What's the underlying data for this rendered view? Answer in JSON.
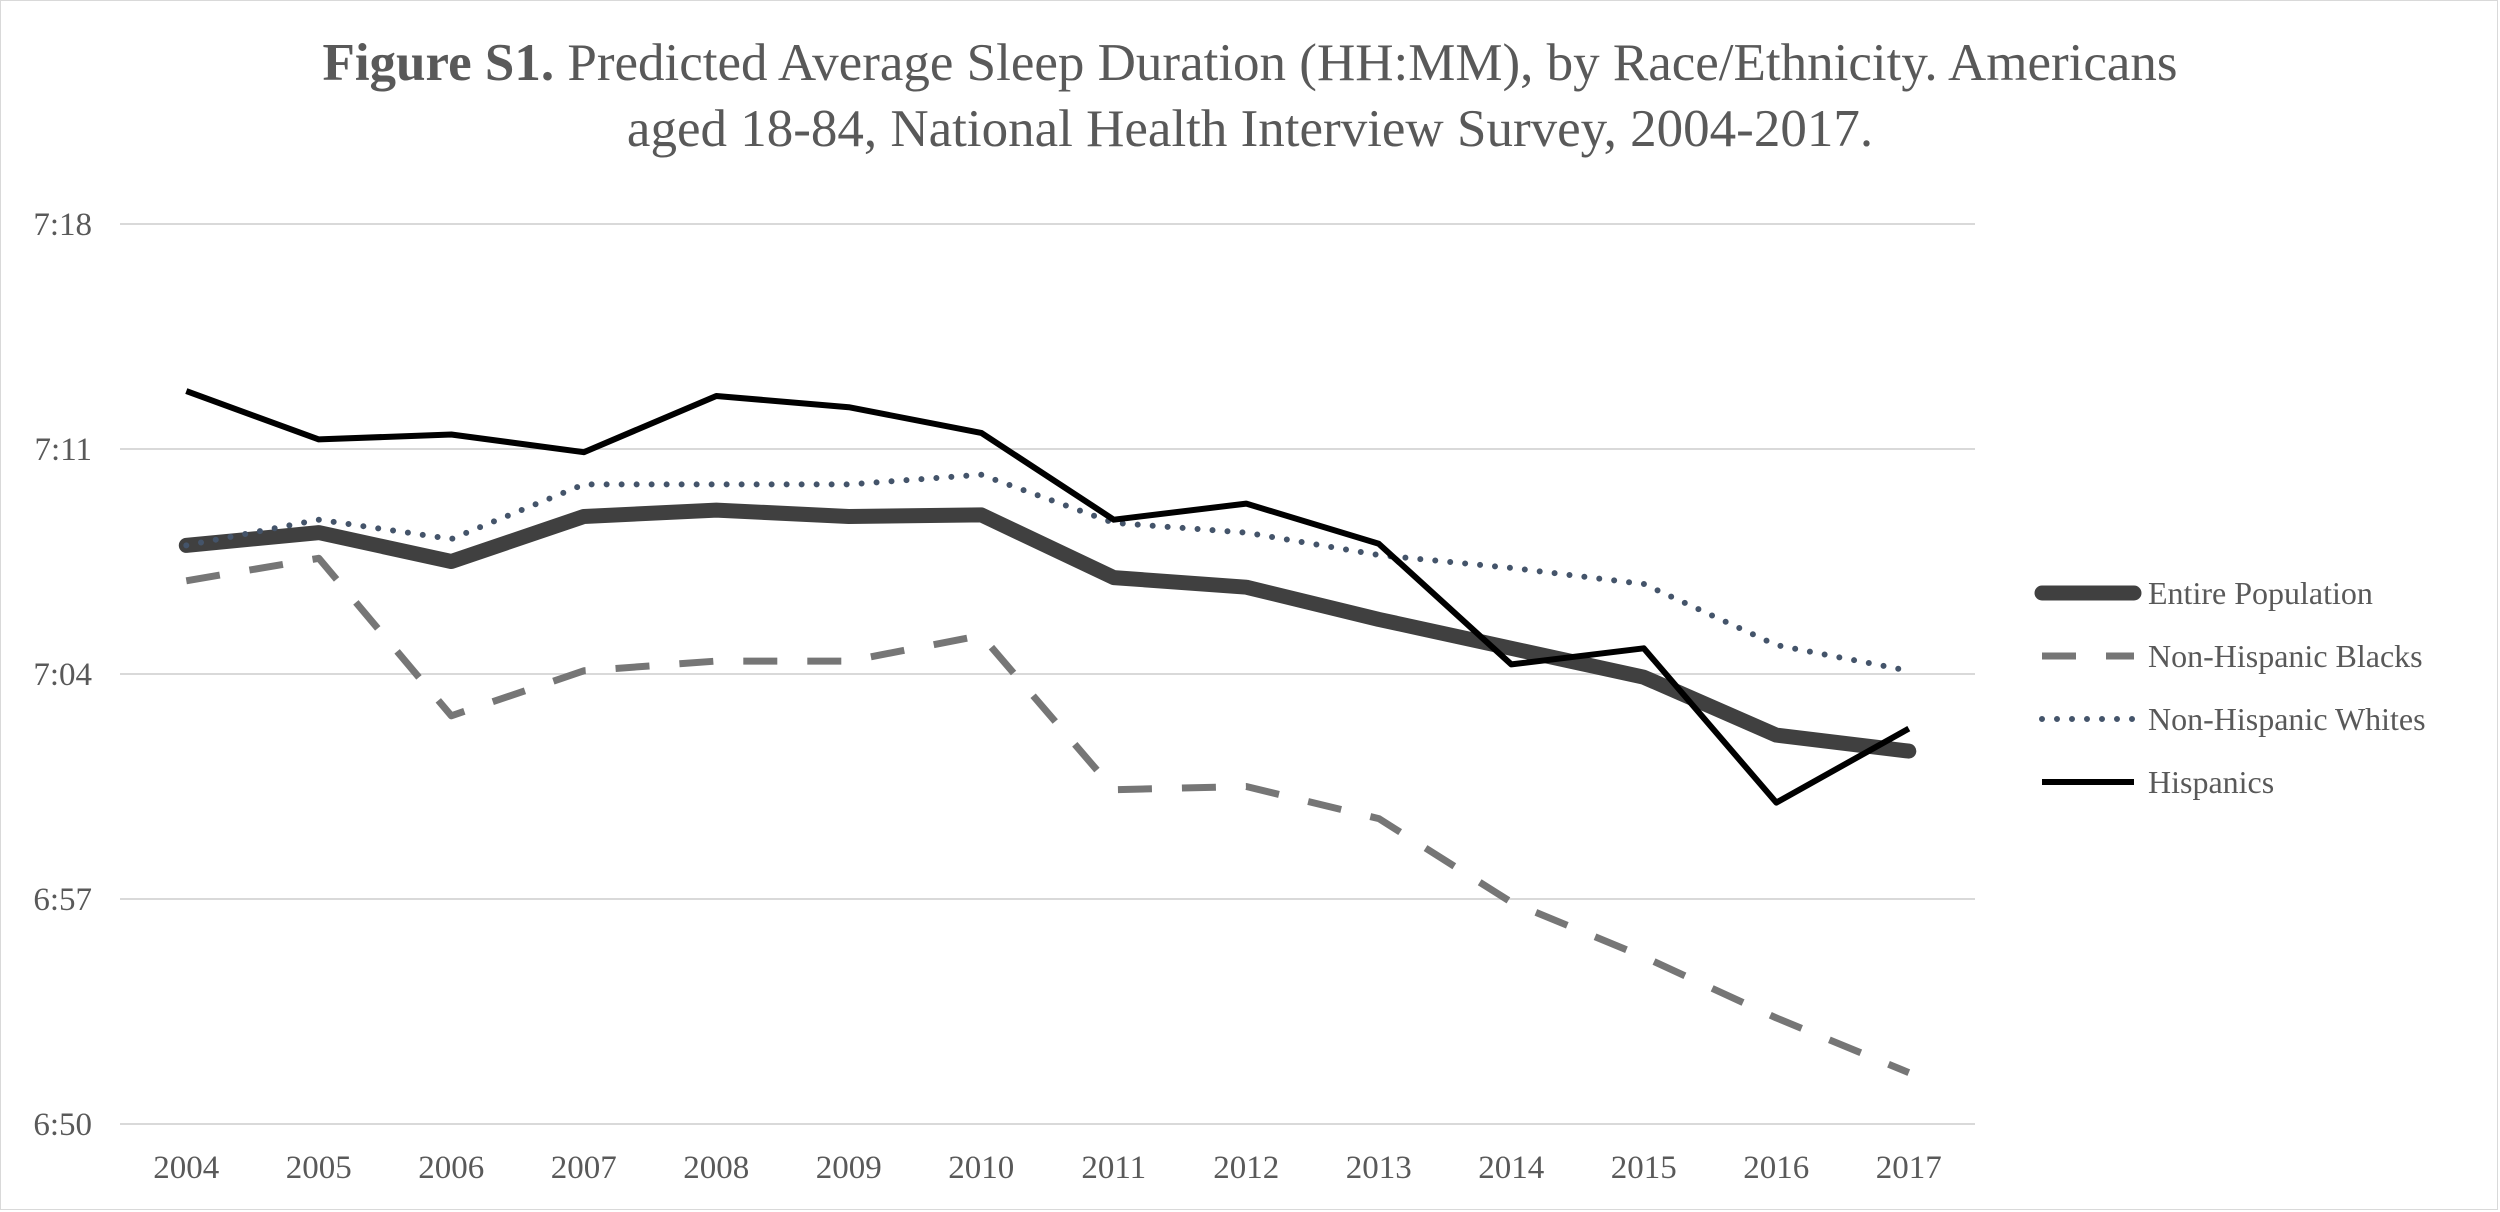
{
  "chart_data": {
    "type": "line",
    "title_bold": "Figure S1.",
    "title_line1": "Predicted Average Sleep Duration (HH:MM), by Race/Ethnicity. Americans",
    "title_line2": "aged 18-84, National Health Interview Survey, 2004-2017.",
    "xlabel": "",
    "ylabel": "",
    "x": [
      "2004",
      "2005",
      "2006",
      "2007",
      "2008",
      "2009",
      "2010",
      "2011",
      "2012",
      "2013",
      "2014",
      "2015",
      "2016",
      "2017"
    ],
    "y_ticks": [
      {
        "label": "7:18",
        "minutes": 438
      },
      {
        "label": "7:11",
        "minutes": 431
      },
      {
        "label": "7:04",
        "minutes": 424
      },
      {
        "label": "6:57",
        "minutes": 417
      },
      {
        "label": "6:50",
        "minutes": 410
      }
    ],
    "ylim_minutes": [
      410,
      438
    ],
    "grid": true,
    "legend_position": "right",
    "series": [
      {
        "name": "Entire Population",
        "style": "thick",
        "color": "#404040",
        "values": [
          428.0,
          428.4,
          427.5,
          428.9,
          429.1,
          428.9,
          428.95,
          427.0,
          426.7,
          425.7,
          424.8,
          423.9,
          422.1,
          421.6
        ]
      },
      {
        "name": "Non-Hispanic Blacks",
        "style": "dashed",
        "color": "#767676",
        "values": [
          426.9,
          427.6,
          422.7,
          424.1,
          424.4,
          424.4,
          425.2,
          420.4,
          420.5,
          419.5,
          416.9,
          415.2,
          413.3,
          411.6
        ]
      },
      {
        "name": "Non-Hispanic Whites",
        "style": "dotted",
        "color": "#44546a",
        "values": [
          428.0,
          428.8,
          428.2,
          429.9,
          429.9,
          429.9,
          430.2,
          428.7,
          428.4,
          427.7,
          427.3,
          426.8,
          424.9,
          424.1
        ]
      },
      {
        "name": "Hispanics",
        "style": "solid",
        "color": "#000000",
        "values": [
          432.8,
          431.3,
          431.45,
          430.9,
          432.65,
          432.3,
          431.5,
          428.8,
          429.3,
          428.05,
          424.3,
          424.8,
          420.0,
          422.3
        ]
      }
    ]
  }
}
